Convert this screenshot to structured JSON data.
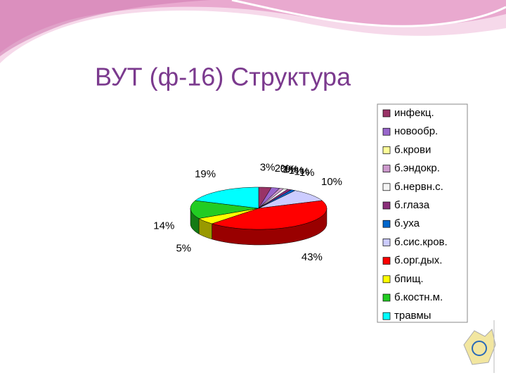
{
  "chart_data": {
    "type": "pie3d",
    "title": "ВУТ (ф-16) Структура",
    "categories": [
      "инфекц.",
      "новообр.",
      "б.крови",
      "б.эндокр.",
      "б.нервн.с.",
      "б.глаза",
      "б.уха",
      "б.сис.кров.",
      "б.орг.дых.",
      "бпищ.",
      "б.костн.м.",
      "травмы"
    ],
    "values": [
      3,
      2,
      0,
      1,
      1,
      1,
      1,
      10,
      43,
      5,
      14,
      19
    ],
    "value_labels": [
      "3%",
      "2%",
      "0%",
      "1%",
      "1%",
      "1%",
      "1%",
      "10%",
      "43%",
      "5%",
      "14%",
      "19%"
    ],
    "colors": [
      "#993366",
      "#9966cc",
      "#ffff99",
      "#cc99cc",
      "#f4f4f4",
      "#8b2f7a",
      "#0066cc",
      "#ccccff",
      "#ff0000",
      "#ffff00",
      "#22cc22",
      "#00ffff"
    ],
    "legend": "right"
  }
}
